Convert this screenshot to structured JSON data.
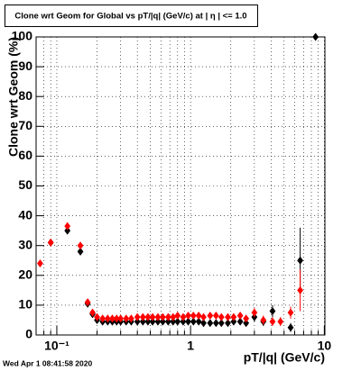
{
  "chart_data": {
    "type": "scatter",
    "title": "Clone wrt Geom for Global vs pT/|q| (GeV/c) at |  η | <= 1.0",
    "x_label": "pT/|q| (GeV/c)",
    "y_label": "Clone wrt Geom (%)",
    "footer": "Wed Apr  1 08:41:58 2020",
    "log_x": true,
    "grid": true,
    "xlim": [
      0.07,
      10.1
    ],
    "ylim": [
      0,
      100
    ],
    "yticks": [
      0,
      10,
      20,
      30,
      40,
      50,
      60,
      70,
      80,
      90,
      100
    ],
    "xticks": [
      {
        "value": 0.1,
        "label": "10⁻¹"
      },
      1,
      10
    ],
    "xminorticks": [
      0.08,
      0.09,
      0.2,
      0.3,
      0.4,
      0.5,
      0.6,
      0.7,
      0.8,
      0.9,
      2,
      3,
      4,
      5,
      6,
      7,
      8,
      9
    ],
    "x": [
      0.075,
      0.09,
      0.12,
      0.15,
      0.17,
      0.185,
      0.2,
      0.22,
      0.24,
      0.26,
      0.28,
      0.3,
      0.33,
      0.36,
      0.4,
      0.44,
      0.48,
      0.52,
      0.57,
      0.62,
      0.68,
      0.74,
      0.8,
      0.88,
      0.96,
      1.05,
      1.15,
      1.25,
      1.4,
      1.55,
      1.7,
      1.9,
      2.1,
      2.35,
      2.6,
      3.0,
      3.5,
      4.1,
      4.7,
      5.6,
      6.6,
      8.6
    ],
    "series": [
      {
        "color": "#000000",
        "values": [
          null,
          31,
          35,
          28,
          10.5,
          7,
          5,
          4.5,
          4.5,
          4.5,
          4.5,
          4.5,
          4.5,
          4.5,
          4.5,
          4.5,
          4.5,
          4.5,
          4.5,
          4.5,
          4.5,
          4.5,
          4.5,
          4.5,
          4.5,
          4.5,
          4.5,
          4,
          4,
          4,
          4,
          4,
          4.5,
          4.5,
          4,
          6,
          4.5,
          8,
          null,
          2.5,
          25,
          100
        ],
        "errors": [
          null,
          0.8,
          1,
          1.2,
          1,
          0.8,
          0.5,
          0.5,
          0.5,
          0.5,
          0.5,
          0.5,
          0.5,
          0.5,
          0.5,
          0.5,
          0.5,
          0.5,
          0.5,
          0.5,
          0.5,
          0.5,
          0.5,
          0.5,
          0.5,
          0.5,
          0.5,
          0.5,
          0.6,
          0.6,
          0.6,
          0.7,
          0.8,
          0.9,
          1,
          1.5,
          1.5,
          2,
          null,
          1.5,
          11,
          0.5
        ]
      },
      {
        "color": "#ff0000",
        "values": [
          24,
          31,
          36.5,
          30,
          11,
          7.5,
          6,
          5.5,
          5.5,
          5.5,
          5.5,
          5.5,
          5.5,
          5.5,
          6,
          6,
          6,
          6,
          6,
          6,
          6,
          6,
          6.5,
          6,
          6.5,
          6.5,
          6.5,
          6,
          6.5,
          6.5,
          6,
          6,
          6,
          6.5,
          5.5,
          7.5,
          5,
          4.5,
          4.5,
          7.5,
          15,
          null
        ],
        "errors": [
          1,
          0.8,
          1,
          1.2,
          1,
          0.8,
          0.5,
          0.5,
          0.5,
          0.5,
          0.5,
          0.5,
          0.5,
          0.5,
          0.5,
          0.5,
          0.5,
          0.5,
          0.5,
          0.5,
          0.5,
          0.5,
          0.5,
          0.5,
          0.5,
          0.5,
          0.5,
          0.5,
          0.6,
          0.6,
          0.6,
          0.7,
          0.8,
          0.9,
          1,
          1.5,
          1.5,
          1.5,
          1.5,
          2,
          7,
          null
        ]
      }
    ]
  }
}
